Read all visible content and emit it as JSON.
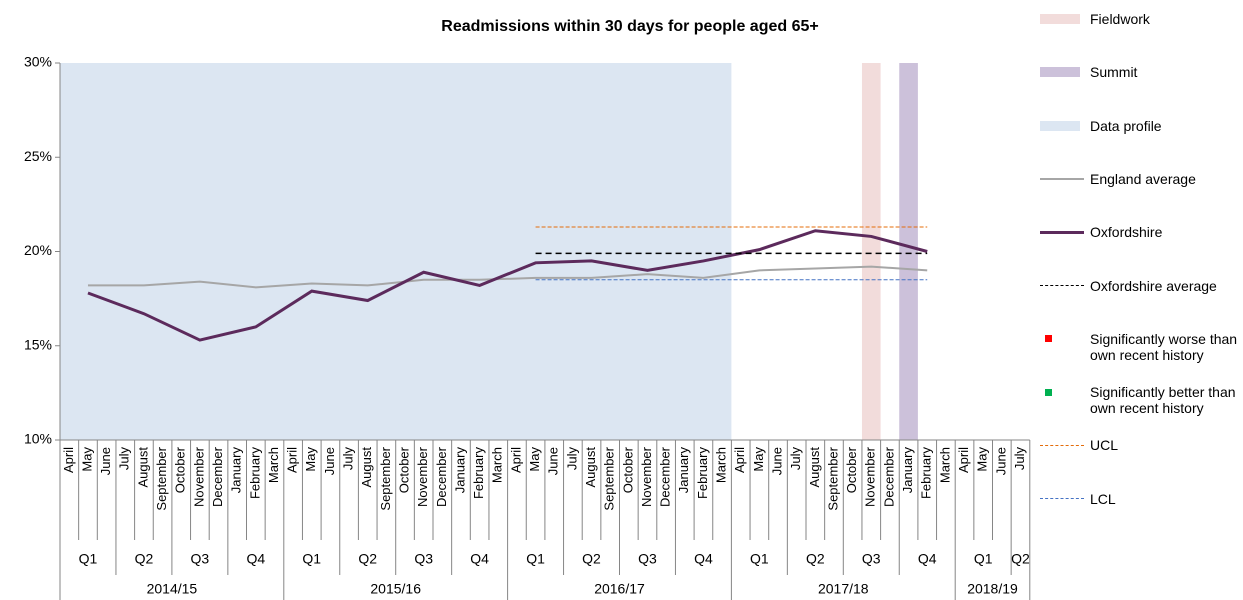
{
  "chart_data": {
    "type": "line",
    "title": "Readmissions within 30 days for people aged 65+",
    "months": [
      "April",
      "May",
      "June",
      "July",
      "August",
      "September",
      "October",
      "November",
      "December",
      "January",
      "February",
      "March",
      "April",
      "May",
      "June",
      "July",
      "August",
      "September",
      "October",
      "November",
      "December",
      "January",
      "February",
      "March",
      "April",
      "May",
      "June",
      "July",
      "August",
      "September",
      "October",
      "November",
      "December",
      "January",
      "February",
      "March",
      "April",
      "May",
      "June",
      "July",
      "August",
      "September",
      "October",
      "November",
      "December",
      "January",
      "February",
      "March",
      "April",
      "May",
      "June",
      "July"
    ],
    "categories": [
      "Q1",
      "Q2",
      "Q3",
      "Q4",
      "Q1",
      "Q2",
      "Q3",
      "Q4",
      "Q1",
      "Q2",
      "Q3",
      "Q4",
      "Q1",
      "Q2",
      "Q3",
      "Q4",
      "Q1",
      "Q2"
    ],
    "years": [
      "2014/15",
      "2015/16",
      "2016/17",
      "2017/18",
      "2018/19"
    ],
    "ylim": [
      10,
      30
    ],
    "yticks": [
      {
        "value": 10,
        "label": "10%"
      },
      {
        "value": 15,
        "label": "15%"
      },
      {
        "value": 20,
        "label": "20%"
      },
      {
        "value": 25,
        "label": "25%"
      },
      {
        "value": 30,
        "label": "30%"
      }
    ],
    "bands": [
      {
        "name": "Fieldwork",
        "color": "#f2dcdb",
        "from": 43,
        "to": 43
      },
      {
        "name": "Summit",
        "color": "#ccc1da",
        "from": 45,
        "to": 45
      },
      {
        "name": "Data profile",
        "color": "#dce6f2",
        "from": 0,
        "to": 35
      }
    ],
    "series": [
      {
        "name": "England average",
        "color": "#a6a6a6",
        "style": "solid",
        "width": 2,
        "values": [
          18.2,
          18.2,
          18.4,
          18.1,
          18.3,
          18.2,
          18.5,
          18.5,
          18.6,
          18.6,
          18.8,
          18.6,
          19.0,
          19.1,
          19.2,
          19.0,
          null,
          null
        ]
      },
      {
        "name": "Oxfordshire",
        "color": "#5c2a5c",
        "style": "solid",
        "width": 3,
        "values": [
          17.8,
          16.7,
          15.3,
          16.0,
          17.9,
          17.4,
          18.9,
          18.2,
          19.4,
          19.5,
          19.0,
          19.5,
          20.1,
          21.1,
          20.8,
          20.0,
          null,
          null
        ]
      },
      {
        "name": "Oxfordshire average",
        "color": "#000000",
        "style": "dashed",
        "width": 1.5,
        "values": [
          null,
          null,
          null,
          null,
          null,
          null,
          null,
          null,
          19.9,
          19.9,
          19.9,
          19.9,
          19.9,
          19.9,
          19.9,
          19.9,
          null,
          null
        ]
      },
      {
        "name": "Significantly worse than own recent history",
        "color": "#ff0000",
        "style": "marker",
        "width": 1,
        "values": [
          null,
          null,
          null,
          null,
          null,
          null,
          null,
          null,
          null,
          null,
          null,
          null,
          null,
          null,
          null,
          null,
          null,
          null
        ]
      },
      {
        "name": "Significantly better than own recent history",
        "color": "#00b050",
        "style": "marker",
        "width": 1,
        "values": [
          null,
          null,
          null,
          null,
          null,
          null,
          null,
          null,
          null,
          null,
          null,
          null,
          null,
          null,
          null,
          null,
          null,
          null
        ]
      },
      {
        "name": "UCL",
        "color": "#e46c0a",
        "style": "dashed",
        "width": 1,
        "values": [
          null,
          null,
          null,
          null,
          null,
          null,
          null,
          null,
          21.3,
          21.3,
          21.3,
          21.3,
          21.3,
          21.3,
          21.3,
          21.3,
          null,
          null
        ]
      },
      {
        "name": "LCL",
        "color": "#4472c4",
        "style": "dashed",
        "width": 1,
        "values": [
          null,
          null,
          null,
          null,
          null,
          null,
          null,
          null,
          18.5,
          18.5,
          18.5,
          18.5,
          18.5,
          18.5,
          18.5,
          18.5,
          null,
          null
        ]
      }
    ]
  }
}
